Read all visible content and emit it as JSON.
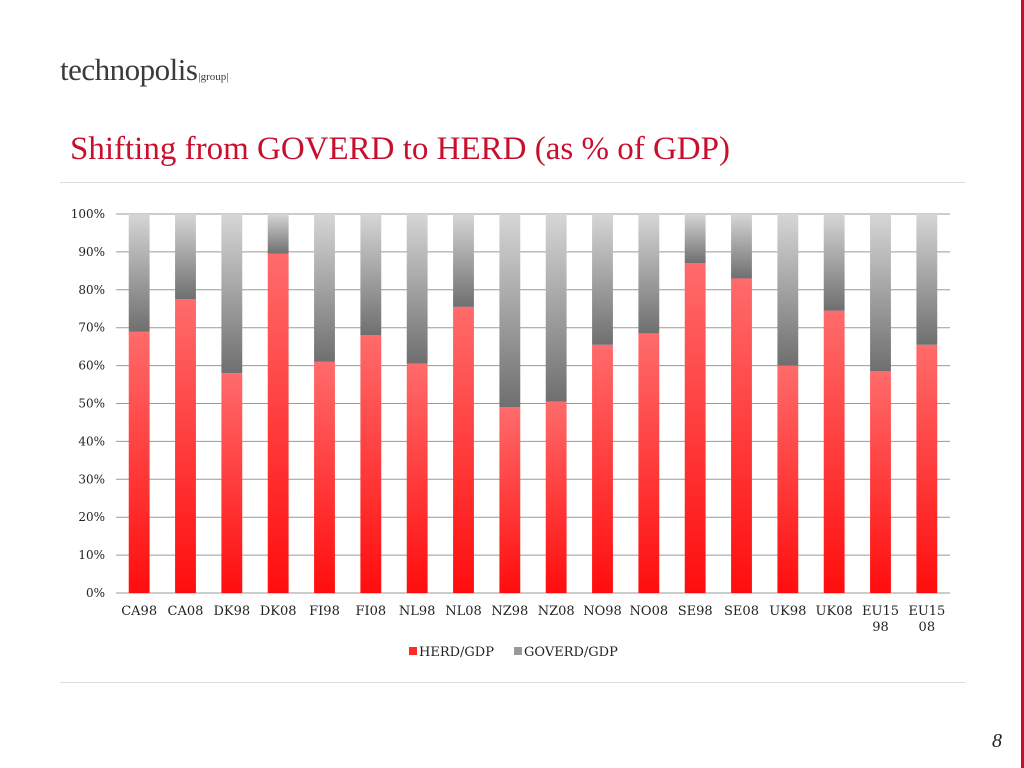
{
  "slide": {
    "logo_main": "technopolis",
    "logo_sub": "|group|",
    "title": "Shifting from GOVERD to HERD (as % of GDP)",
    "page_number": "8",
    "accent_color": "#c8102e"
  },
  "chart_data": {
    "type": "bar",
    "stacked": true,
    "percent_stacked": true,
    "title": "",
    "xlabel": "",
    "ylabel": "",
    "ylim": [
      0,
      100
    ],
    "y_ticks": [
      "0%",
      "10%",
      "20%",
      "30%",
      "40%",
      "50%",
      "60%",
      "70%",
      "80%",
      "90%",
      "100%"
    ],
    "categories": [
      "CA98",
      "CA08",
      "DK98",
      "DK08",
      "FI98",
      "FI08",
      "NL98",
      "NL08",
      "NZ98",
      "NZ08",
      "NO98",
      "NO08",
      "SE98",
      "SE08",
      "UK98",
      "UK08",
      "EU15\n98",
      "EU15\n08"
    ],
    "category_labels": [
      [
        "CA98"
      ],
      [
        "CA08"
      ],
      [
        "DK98"
      ],
      [
        "DK08"
      ],
      [
        "FI98"
      ],
      [
        "FI08"
      ],
      [
        "NL98"
      ],
      [
        "NL08"
      ],
      [
        "NZ98"
      ],
      [
        "NZ08"
      ],
      [
        "NO98"
      ],
      [
        "NO08"
      ],
      [
        "SE98"
      ],
      [
        "SE08"
      ],
      [
        "UK98"
      ],
      [
        "UK08"
      ],
      [
        "EU15",
        "98"
      ],
      [
        "EU15",
        "08"
      ]
    ],
    "series": [
      {
        "name": "HERD/GDP",
        "color": "#ff1a1a",
        "values": [
          69,
          77.5,
          58,
          89.5,
          61,
          68,
          60.5,
          75.5,
          49,
          50.5,
          65.5,
          68.5,
          87,
          83,
          60,
          74.5,
          58.5,
          65.5
        ]
      },
      {
        "name": "GOVERD/GDP",
        "color": "#8c8c8c",
        "values": [
          31,
          22.5,
          42,
          10.5,
          39,
          32,
          39.5,
          24.5,
          51,
          49.5,
          34.5,
          31.5,
          13,
          17,
          40,
          25.5,
          41.5,
          34.5
        ]
      }
    ],
    "legend_position": "bottom",
    "grid": true
  }
}
